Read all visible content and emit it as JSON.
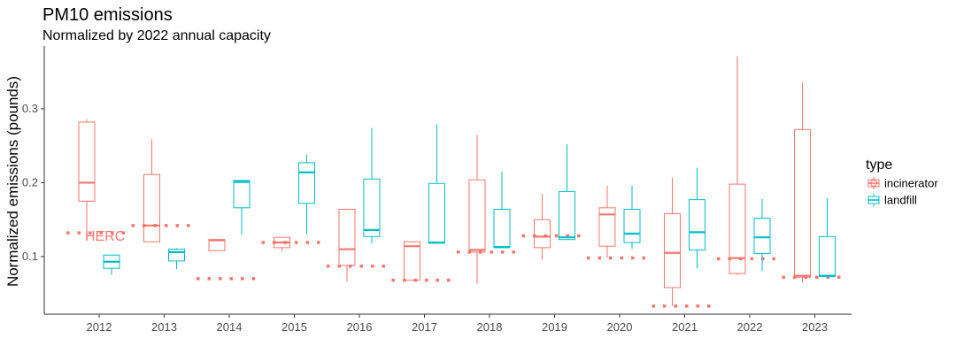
{
  "chart_data": {
    "type": "boxplot",
    "title": "PM10 emissions",
    "subtitle": "Normalized by 2022 annual capacity",
    "xlabel": "",
    "ylabel": "Normalized emissions (pounds)",
    "ylim": [
      0.022,
      0.385
    ],
    "yticks": [
      "0.1",
      "0.2",
      "0.3"
    ],
    "ytick_values": [
      0.1,
      0.2,
      0.3
    ],
    "categories": [
      "2012",
      "2013",
      "2014",
      "2015",
      "2016",
      "2017",
      "2018",
      "2019",
      "2020",
      "2021",
      "2022",
      "2023"
    ],
    "grid": false,
    "legend": {
      "title": "type",
      "position": "right"
    },
    "series": [
      {
        "name": "incinerator",
        "color": "#F8766D",
        "boxes": [
          {
            "min": 0.132,
            "q1": 0.175,
            "median": 0.2,
            "q3": 0.282,
            "max": 0.286
          },
          {
            "min": 0.12,
            "q1": 0.12,
            "median": 0.142,
            "q3": 0.211,
            "max": 0.259
          },
          {
            "min": 0.108,
            "q1": 0.108,
            "median": 0.122,
            "q3": 0.123,
            "max": 0.123
          },
          {
            "min": 0.107,
            "q1": 0.112,
            "median": 0.119,
            "q3": 0.126,
            "max": 0.126
          },
          {
            "min": 0.066,
            "q1": 0.088,
            "median": 0.11,
            "q3": 0.164,
            "max": 0.164
          },
          {
            "min": 0.068,
            "q1": 0.068,
            "median": 0.114,
            "q3": 0.12,
            "max": 0.12
          },
          {
            "min": 0.063,
            "q1": 0.106,
            "median": 0.109,
            "q3": 0.204,
            "max": 0.265
          },
          {
            "min": 0.096,
            "q1": 0.112,
            "median": 0.127,
            "q3": 0.15,
            "max": 0.185
          },
          {
            "min": 0.098,
            "q1": 0.114,
            "median": 0.157,
            "q3": 0.166,
            "max": 0.196
          },
          {
            "min": 0.033,
            "q1": 0.058,
            "median": 0.105,
            "q3": 0.158,
            "max": 0.207
          },
          {
            "min": 0.075,
            "q1": 0.077,
            "median": 0.098,
            "q3": 0.198,
            "max": 0.371
          },
          {
            "min": 0.065,
            "q1": 0.072,
            "median": 0.074,
            "q3": 0.272,
            "max": 0.336
          }
        ]
      },
      {
        "name": "landfill",
        "color": "#00BFC4",
        "boxes": [
          {
            "min": 0.075,
            "q1": 0.084,
            "median": 0.093,
            "q3": 0.102,
            "max": 0.102
          },
          {
            "min": 0.083,
            "q1": 0.094,
            "median": 0.106,
            "q3": 0.11,
            "max": 0.111
          },
          {
            "min": 0.13,
            "q1": 0.166,
            "median": 0.201,
            "q3": 0.203,
            "max": 0.203
          },
          {
            "min": 0.13,
            "q1": 0.172,
            "median": 0.214,
            "q3": 0.227,
            "max": 0.238
          },
          {
            "min": 0.118,
            "q1": 0.127,
            "median": 0.136,
            "q3": 0.205,
            "max": 0.274
          },
          {
            "min": 0.118,
            "q1": 0.118,
            "median": 0.119,
            "q3": 0.199,
            "max": 0.279
          },
          {
            "min": 0.112,
            "q1": 0.112,
            "median": 0.113,
            "q3": 0.164,
            "max": 0.215
          },
          {
            "min": 0.123,
            "q1": 0.123,
            "median": 0.126,
            "q3": 0.188,
            "max": 0.252
          },
          {
            "min": 0.11,
            "q1": 0.119,
            "median": 0.131,
            "q3": 0.164,
            "max": 0.196
          },
          {
            "min": 0.084,
            "q1": 0.109,
            "median": 0.133,
            "q3": 0.177,
            "max": 0.22
          },
          {
            "min": 0.08,
            "q1": 0.104,
            "median": 0.126,
            "q3": 0.152,
            "max": 0.178
          },
          {
            "min": 0.071,
            "q1": 0.073,
            "median": 0.074,
            "q3": 0.127,
            "max": 0.179
          }
        ]
      }
    ],
    "reference": {
      "series": "incinerator",
      "label": "HERC",
      "values": [
        0.132,
        0.142,
        0.07,
        0.119,
        0.087,
        0.068,
        0.106,
        0.128,
        0.098,
        0.033,
        0.097,
        0.072
      ]
    }
  }
}
